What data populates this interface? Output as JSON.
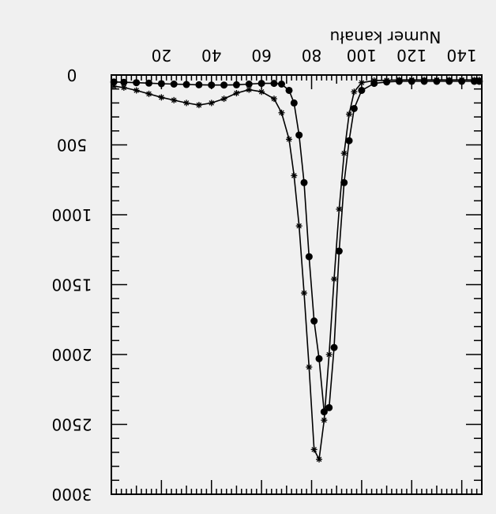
{
  "chart_data": {
    "type": "line",
    "xlabel": "Numer kanału",
    "ylabel": "",
    "xlim": [
      0,
      148
    ],
    "ylim": [
      0,
      3000
    ],
    "y_inverted": true,
    "x_axis_position": "top",
    "x_ticks": [
      20,
      40,
      60,
      80,
      100,
      120,
      140
    ],
    "y_ticks": [
      0,
      500,
      1000,
      1500,
      2000,
      2500,
      3000
    ],
    "grid": false,
    "series": [
      {
        "marker": "star",
        "x": [
          1,
          5,
          10,
          15,
          20,
          25,
          30,
          35,
          40,
          45,
          50,
          55,
          60,
          65,
          68,
          71,
          73,
          75,
          77,
          79,
          81,
          83,
          85,
          87,
          89,
          91,
          93,
          95,
          97,
          100,
          105,
          110,
          115,
          120,
          125,
          130,
          135,
          140,
          145,
          147
        ],
        "y": [
          80,
          90,
          110,
          135,
          160,
          180,
          200,
          215,
          200,
          170,
          130,
          105,
          120,
          170,
          270,
          460,
          720,
          1080,
          1560,
          2090,
          2680,
          2750,
          2470,
          2000,
          1460,
          960,
          560,
          280,
          120,
          55,
          40,
          38,
          35,
          35,
          35,
          35,
          35,
          35,
          35,
          35
        ]
      },
      {
        "marker": "circle",
        "x": [
          1,
          5,
          10,
          15,
          20,
          25,
          30,
          35,
          40,
          45,
          50,
          55,
          60,
          65,
          68,
          71,
          73,
          75,
          77,
          79,
          81,
          83,
          85,
          87,
          89,
          91,
          93,
          95,
          97,
          100,
          105,
          110,
          115,
          120,
          125,
          130,
          135,
          140,
          145,
          147
        ],
        "y": [
          50,
          52,
          55,
          58,
          62,
          65,
          68,
          70,
          72,
          72,
          70,
          65,
          60,
          60,
          65,
          110,
          200,
          430,
          770,
          1300,
          1760,
          2030,
          2410,
          2380,
          1950,
          1260,
          770,
          470,
          240,
          110,
          60,
          50,
          45,
          45,
          45,
          45,
          45,
          45,
          45,
          45
        ]
      }
    ]
  }
}
